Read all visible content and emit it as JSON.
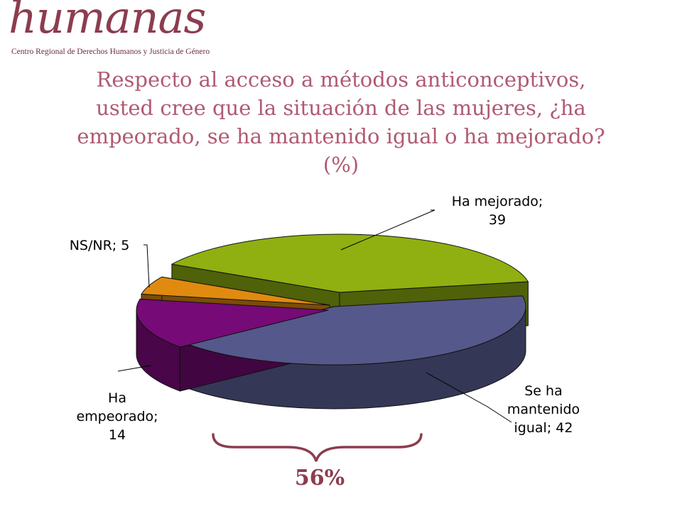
{
  "logo": {
    "word": "humanas",
    "subtitle": "Centro Regional de Derechos Humanos y Justicia de Género"
  },
  "title_lines": [
    "Respecto al acceso a métodos anticonceptivos,",
    "usted  cree que la situación de las mujeres, ¿ha",
    "empeorado, se ha mantenido igual o ha mejorado?",
    "(%)"
  ],
  "chart_data": {
    "type": "pie",
    "three_d": true,
    "exploded": true,
    "legend": "none",
    "slices": [
      {
        "label": "Ha mejorado",
        "value": 39,
        "color": "#8fb010"
      },
      {
        "label": "Se ha mantenido igual",
        "value": 42,
        "color": "#55588a"
      },
      {
        "label": "Ha empeorado",
        "value": 14,
        "color": "#760a76"
      },
      {
        "label": "NS/NR",
        "value": 5,
        "color": "#e08a10"
      }
    ],
    "data_labels": [
      {
        "lines": [
          "Ha mejorado;",
          "39"
        ]
      },
      {
        "lines": [
          "Se ha",
          "mantenido",
          "igual; 42"
        ]
      },
      {
        "lines": [
          "Ha",
          "empeorado;",
          "14"
        ]
      },
      {
        "lines": [
          "NS/NR; 5"
        ]
      }
    ]
  },
  "bracket": {
    "value": "56%",
    "color": "#8c3d4f"
  }
}
